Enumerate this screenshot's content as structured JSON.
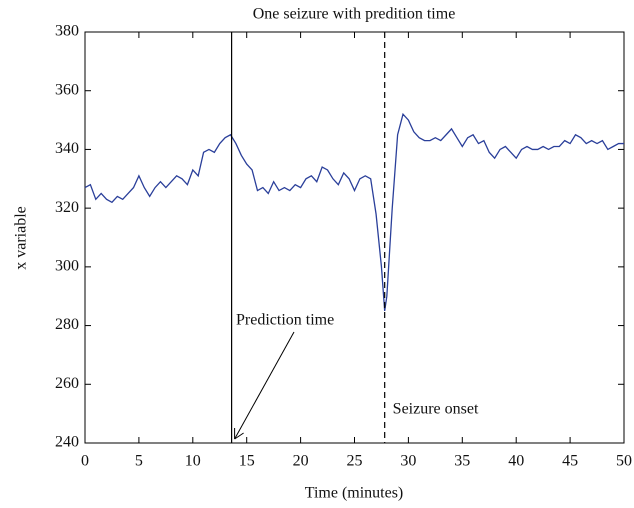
{
  "chart_data": {
    "type": "line",
    "title": "One seizure with predition time",
    "x_label": "Time (minutes)",
    "y_label": "x variable",
    "x": [
      0,
      0.5,
      1,
      1.5,
      2,
      2.5,
      3,
      3.5,
      4,
      4.5,
      5,
      5.5,
      6,
      6.5,
      7,
      7.5,
      8,
      8.5,
      9,
      9.5,
      10,
      10.5,
      11,
      11.5,
      12,
      12.5,
      13,
      13.5,
      14,
      14.5,
      15,
      15.5,
      16,
      16.5,
      17,
      17.5,
      18,
      18.5,
      19,
      19.5,
      20,
      20.5,
      21,
      21.5,
      22,
      22.5,
      23,
      23.5,
      24,
      24.5,
      25,
      25.5,
      26,
      26.5,
      27,
      27.5,
      27.8,
      28,
      28.5,
      29,
      29.5,
      30,
      30.5,
      31,
      31.5,
      32,
      32.5,
      33,
      33.5,
      34,
      34.5,
      35,
      35.5,
      36,
      36.5,
      37,
      37.5,
      38,
      38.5,
      39,
      39.5,
      40,
      40.5,
      41,
      41.5,
      42,
      42.5,
      43,
      43.5,
      44,
      44.5,
      45,
      45.5,
      46,
      46.5,
      47,
      47.5,
      48,
      48.5,
      49,
      49.5,
      50
    ],
    "series": [
      {
        "color": "#2a3f9a",
        "values": [
          327,
          328,
          323,
          325,
          323,
          322,
          324,
          323,
          325,
          327,
          331,
          327,
          324,
          327,
          329,
          327,
          329,
          331,
          330,
          328,
          333,
          331,
          339,
          340,
          339,
          342,
          344,
          345,
          342,
          338,
          335,
          333,
          326,
          327,
          325,
          329,
          326,
          327,
          326,
          328,
          327,
          330,
          331,
          329,
          334,
          333,
          330,
          328,
          332,
          330,
          326,
          330,
          331,
          330,
          318,
          300,
          285,
          290,
          320,
          345,
          352,
          350,
          346,
          344,
          343,
          343,
          344,
          343,
          345,
          347,
          344,
          341,
          344,
          345,
          342,
          343,
          339,
          337,
          340,
          341,
          339,
          337,
          340,
          341,
          340,
          340,
          341,
          340,
          341,
          341,
          343,
          342,
          345,
          344,
          342,
          343,
          342,
          343,
          340,
          341,
          342,
          342
        ]
      }
    ],
    "xlim": [
      0,
      50
    ],
    "xticks": [
      0,
      5,
      10,
      15,
      20,
      25,
      30,
      35,
      40,
      45,
      50
    ],
    "ylim": [
      240,
      380
    ],
    "yticks": [
      240,
      260,
      280,
      300,
      320,
      340,
      360,
      380
    ],
    "vlines": [
      {
        "x": 13.6,
        "style": "solid",
        "label": "Prediction time"
      },
      {
        "x": 27.8,
        "style": "dashed",
        "label": "Seizure onset"
      }
    ]
  }
}
